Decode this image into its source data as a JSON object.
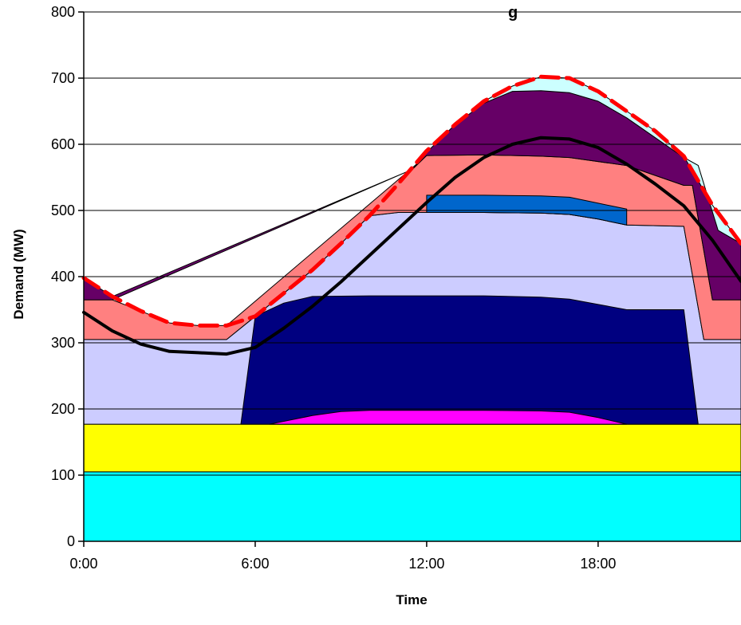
{
  "chart_data": {
    "type": "area",
    "title": "g",
    "xlabel": "Time",
    "ylabel": "Demand (MW)",
    "xlim": [
      0,
      23
    ],
    "ylim": [
      0,
      800
    ],
    "x_ticks": [
      0,
      6,
      12,
      18
    ],
    "x_tick_labels": [
      "0:00",
      "6:00",
      "12:00",
      "18:00"
    ],
    "y_ticks": [
      0,
      100,
      200,
      300,
      400,
      500,
      600,
      700,
      800
    ],
    "y_tick_labels": [
      "0",
      "100",
      "200",
      "300",
      "400",
      "500",
      "600",
      "700",
      "800"
    ],
    "grid": "horizontal",
    "layers": [
      {
        "color": "#00ffff",
        "top": [
          [
            0,
            105
          ],
          [
            23,
            105
          ]
        ],
        "bottom": [
          [
            0,
            0
          ],
          [
            23,
            0
          ]
        ]
      },
      {
        "color": "#ffff00",
        "top": [
          [
            0,
            177
          ],
          [
            23,
            177
          ]
        ],
        "bottom": [
          [
            0,
            105
          ],
          [
            23,
            105
          ]
        ]
      },
      {
        "color": "#ccccff",
        "top": [
          [
            0,
            305
          ],
          [
            5,
            305
          ],
          [
            6,
            340
          ],
          [
            7,
            375
          ],
          [
            8,
            410
          ],
          [
            9,
            450
          ],
          [
            10,
            492
          ],
          [
            11,
            497
          ],
          [
            12,
            497
          ],
          [
            14,
            497
          ],
          [
            16,
            496
          ],
          [
            17,
            494
          ],
          [
            18,
            487
          ],
          [
            19,
            478
          ],
          [
            21,
            476
          ],
          [
            21.7,
            305
          ],
          [
            23,
            305
          ]
        ],
        "bottom": [
          [
            0,
            177
          ],
          [
            23,
            177
          ]
        ]
      },
      {
        "color": "#000080",
        "top": [
          [
            5.5,
            177
          ],
          [
            6,
            340
          ],
          [
            7,
            360
          ],
          [
            8,
            370
          ],
          [
            10,
            371
          ],
          [
            12,
            371
          ],
          [
            14,
            371
          ],
          [
            16,
            369
          ],
          [
            17,
            366
          ],
          [
            19,
            350
          ],
          [
            21,
            350
          ],
          [
            21.5,
            177
          ]
        ],
        "bottom": [
          [
            5.5,
            177
          ],
          [
            21.5,
            177
          ]
        ]
      },
      {
        "color": "#ff00ff",
        "top": [
          [
            6.5,
            177
          ],
          [
            8,
            190
          ],
          [
            9,
            196
          ],
          [
            10,
            198
          ],
          [
            12,
            198
          ],
          [
            14,
            198
          ],
          [
            16,
            197
          ],
          [
            17,
            195
          ],
          [
            18,
            187
          ],
          [
            19,
            177
          ]
        ],
        "bottom": [
          [
            6.5,
            177
          ],
          [
            19,
            177
          ]
        ]
      },
      {
        "color": "#ff8080",
        "top": [
          [
            0,
            365
          ],
          [
            1,
            365
          ],
          [
            2,
            348
          ],
          [
            3,
            330
          ],
          [
            4,
            326
          ],
          [
            5,
            326
          ],
          [
            12,
            583
          ],
          [
            14,
            584
          ],
          [
            16,
            582
          ],
          [
            17,
            580
          ],
          [
            19,
            568
          ],
          [
            21,
            538
          ],
          [
            21.3,
            538
          ],
          [
            22,
            365
          ],
          [
            23,
            365
          ]
        ],
        "bottom": [
          [
            0,
            305
          ],
          [
            5,
            305
          ],
          [
            6,
            340
          ],
          [
            7,
            375
          ],
          [
            8,
            410
          ],
          [
            9,
            450
          ],
          [
            10,
            492
          ],
          [
            11,
            497
          ],
          [
            12,
            497
          ],
          [
            14,
            497
          ],
          [
            16,
            496
          ],
          [
            17,
            494
          ],
          [
            18,
            487
          ],
          [
            19,
            478
          ],
          [
            21,
            476
          ],
          [
            21.7,
            305
          ],
          [
            23,
            305
          ]
        ]
      },
      {
        "color": "#0066cc",
        "top": [
          [
            12,
            523
          ],
          [
            14,
            523
          ],
          [
            16,
            522
          ],
          [
            17,
            520
          ],
          [
            19,
            502
          ]
        ],
        "bottom": [
          [
            12,
            497
          ],
          [
            14,
            497
          ],
          [
            16,
            496
          ],
          [
            17,
            494
          ],
          [
            18,
            487
          ],
          [
            19,
            478
          ]
        ]
      },
      {
        "color": "#660066",
        "top": [
          [
            0,
            398
          ],
          [
            1,
            370
          ],
          [
            11.5,
            562
          ],
          [
            12,
            588
          ],
          [
            13,
            630
          ],
          [
            14,
            662
          ],
          [
            15,
            680
          ],
          [
            16,
            681
          ],
          [
            17,
            678
          ],
          [
            18,
            665
          ],
          [
            19,
            640
          ],
          [
            20,
            610
          ],
          [
            21,
            580
          ],
          [
            21.5,
            568
          ],
          [
            22.2,
            470
          ],
          [
            23,
            450
          ]
        ],
        "bottom": [
          [
            0,
            365
          ],
          [
            1,
            365
          ],
          [
            11.5,
            562
          ],
          [
            12,
            583
          ],
          [
            14,
            584
          ],
          [
            16,
            582
          ],
          [
            17,
            580
          ],
          [
            19,
            568
          ],
          [
            21,
            538
          ],
          [
            21.3,
            538
          ],
          [
            22,
            365
          ],
          [
            23,
            365
          ]
        ]
      },
      {
        "color": "#ccffff",
        "top": [
          [
            14,
            665
          ],
          [
            15,
            688
          ],
          [
            16,
            702
          ],
          [
            17,
            700
          ],
          [
            18,
            680
          ],
          [
            19,
            650
          ],
          [
            20,
            620
          ],
          [
            21,
            582
          ],
          [
            22,
            508
          ],
          [
            23,
            450
          ]
        ],
        "bottom": [
          [
            14,
            662
          ],
          [
            15,
            680
          ],
          [
            16,
            681
          ],
          [
            17,
            678
          ],
          [
            18,
            665
          ],
          [
            19,
            640
          ],
          [
            20,
            610
          ],
          [
            21,
            580
          ],
          [
            21.5,
            568
          ],
          [
            22.2,
            470
          ],
          [
            23,
            450
          ]
        ]
      }
    ],
    "series": [
      {
        "color": "#000000",
        "style": "solid",
        "x": [
          0,
          1,
          2,
          3,
          4,
          5,
          6,
          7,
          8,
          9,
          10,
          11,
          12,
          13,
          14,
          15,
          16,
          17,
          18,
          19,
          20,
          21,
          22,
          23
        ],
        "values": [
          346,
          318,
          298,
          287,
          285,
          283,
          293,
          322,
          355,
          392,
          432,
          472,
          512,
          550,
          580,
          600,
          610,
          608,
          595,
          570,
          540,
          507,
          455,
          393
        ]
      },
      {
        "color": "#ff0000",
        "style": "dashed",
        "x": [
          0,
          1,
          2,
          3,
          4,
          5,
          6,
          7,
          8,
          9,
          10,
          11,
          12,
          13,
          14,
          15,
          16,
          17,
          18,
          19,
          20,
          21,
          22,
          23
        ],
        "values": [
          398,
          370,
          348,
          330,
          326,
          326,
          340,
          375,
          410,
          450,
          492,
          540,
          590,
          630,
          665,
          688,
          702,
          700,
          680,
          650,
          620,
          582,
          508,
          450
        ]
      }
    ]
  }
}
